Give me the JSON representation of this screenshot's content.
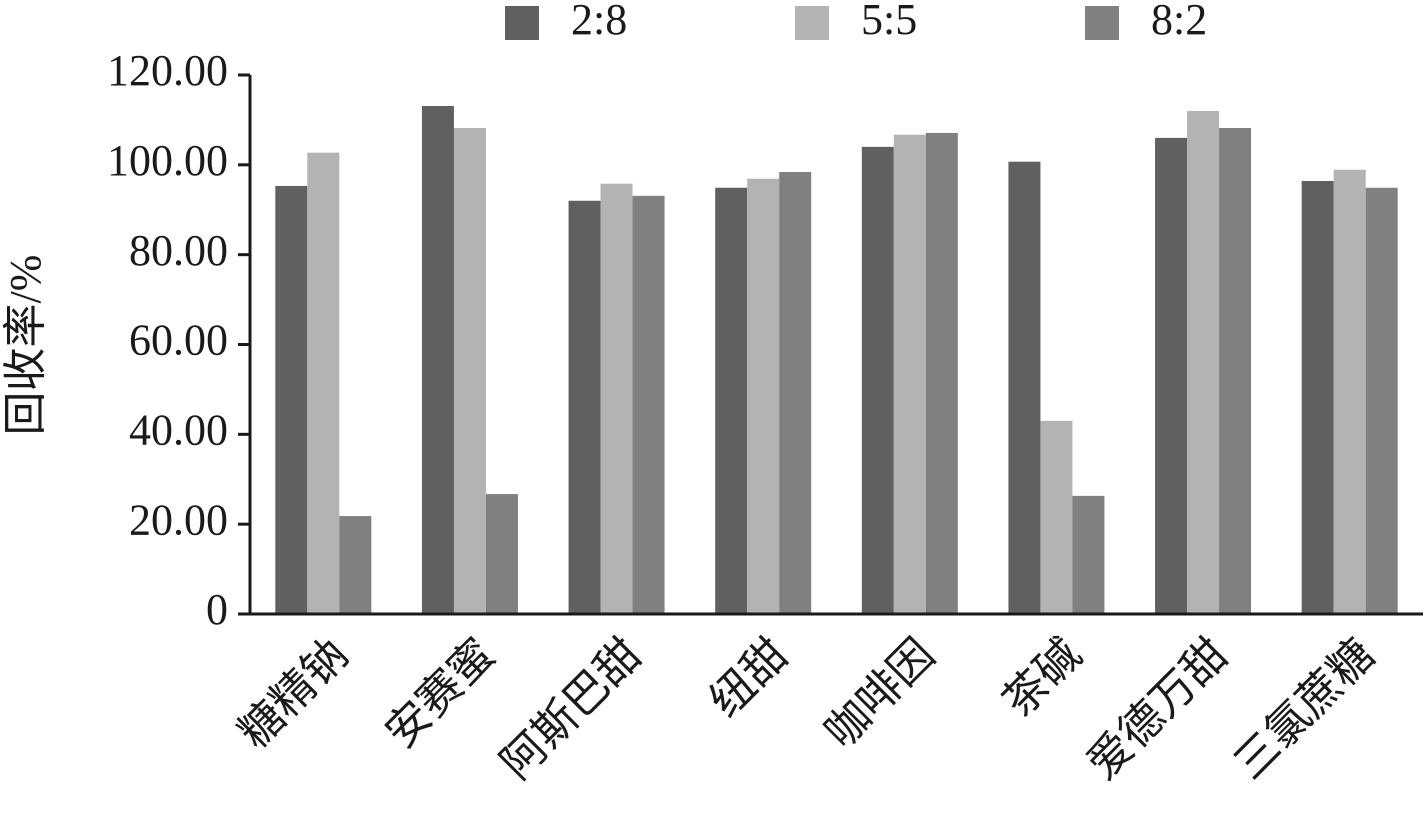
{
  "chart_data": {
    "type": "bar",
    "y_label": "回收率/%",
    "categories": [
      "糖精钠",
      "安赛蜜",
      "阿斯巴甜",
      "纽甜",
      "咖啡因",
      "茶碱",
      "爱德万甜",
      "三氯蔗糖"
    ],
    "series": [
      {
        "name": "2:8",
        "color": "#606060",
        "values": [
          95.3,
          113.1,
          92.0,
          94.9,
          104.0,
          100.7,
          106.0,
          96.4
        ]
      },
      {
        "name": "5:5",
        "color": "#b3b3b3",
        "values": [
          102.7,
          108.2,
          95.8,
          96.9,
          106.7,
          43.0,
          112.0,
          98.9
        ]
      },
      {
        "name": "8:2",
        "color": "#808080",
        "values": [
          21.8,
          26.7,
          93.1,
          98.4,
          107.1,
          26.3,
          108.2,
          94.9
        ]
      }
    ],
    "ylim": [
      0,
      120
    ],
    "yticks": [
      0,
      {
        "value": 20,
        "label": "20.00"
      },
      {
        "value": 40,
        "label": "40.00"
      },
      {
        "value": 60,
        "label": "60.00"
      },
      {
        "value": 80,
        "label": "80.00"
      },
      {
        "value": 100,
        "label": "100.00"
      },
      {
        "value": 120,
        "label": "120.00"
      }
    ],
    "grid": false,
    "legend": "top"
  }
}
